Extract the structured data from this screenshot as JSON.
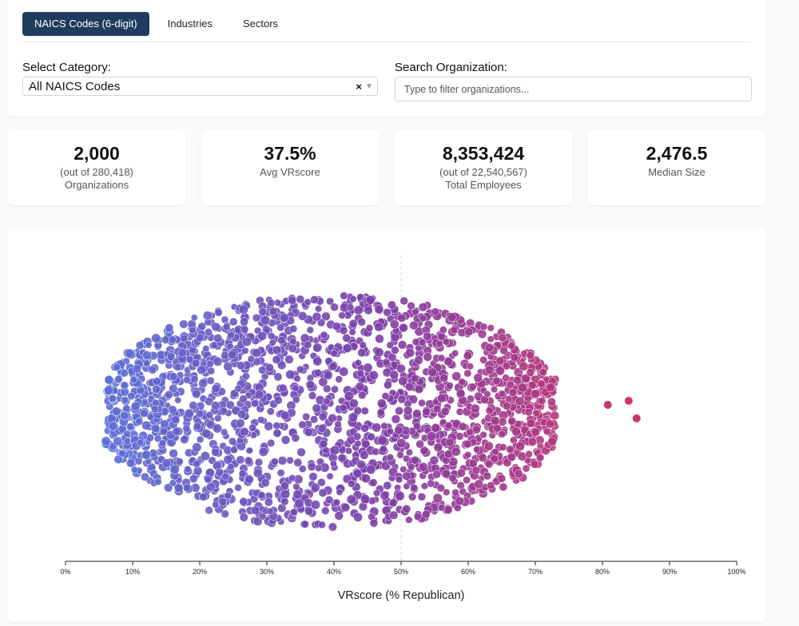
{
  "tabs": [
    {
      "label": "NAICS Codes (6-digit)",
      "active": true
    },
    {
      "label": "Industries",
      "active": false
    },
    {
      "label": "Sectors",
      "active": false
    }
  ],
  "filters": {
    "category_label": "Select Category:",
    "category_value": "All NAICS Codes",
    "clear_glyph": "×",
    "organization_label": "Search Organization:",
    "organization_placeholder": "Type to filter organizations..."
  },
  "stats": [
    {
      "value": "2,000",
      "sub1": "(out of 280,418)",
      "sub2": "Organizations"
    },
    {
      "value": "37.5%",
      "sub1": "Avg VRscore",
      "sub2": ""
    },
    {
      "value": "8,353,424",
      "sub1": "(out of 22,540,567)",
      "sub2": "Total Employees"
    },
    {
      "value": "2,476.5",
      "sub1": "Median Size",
      "sub2": ""
    }
  ],
  "chart_data": {
    "type": "scatter",
    "subtype": "beeswarm",
    "xlabel": "VRscore (% Republican)",
    "xlim": [
      0,
      100
    ],
    "x_ticks": [
      "0%",
      "10%",
      "20%",
      "30%",
      "40%",
      "50%",
      "60%",
      "70%",
      "80%",
      "90%",
      "100%"
    ],
    "reference_line_x": 50,
    "point_count": 2000,
    "approx_x_range": [
      6,
      86
    ],
    "color_low": "#5b6fd6",
    "color_mid": "#7c3fa8",
    "color_high": "#d0356a",
    "outliers_x": [
      80.8,
      83.9,
      85.1
    ]
  },
  "colors": {
    "active_tab": "#1f3b5e",
    "page_bg": "#f9fafb"
  }
}
